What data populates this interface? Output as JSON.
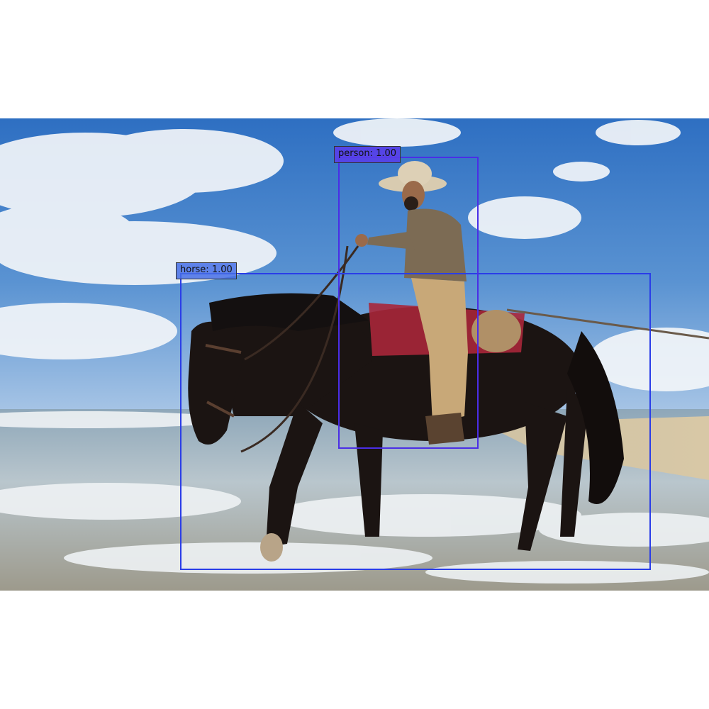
{
  "image": {
    "description_icon": "photo-horse-rider-beach"
  },
  "detections": [
    {
      "class": "horse",
      "score": "1.00",
      "label": "horse: 1.00",
      "color": "#2a3de8"
    },
    {
      "class": "person",
      "score": "1.00",
      "label": "person: 1.00",
      "color": "#4a2ee6"
    }
  ]
}
